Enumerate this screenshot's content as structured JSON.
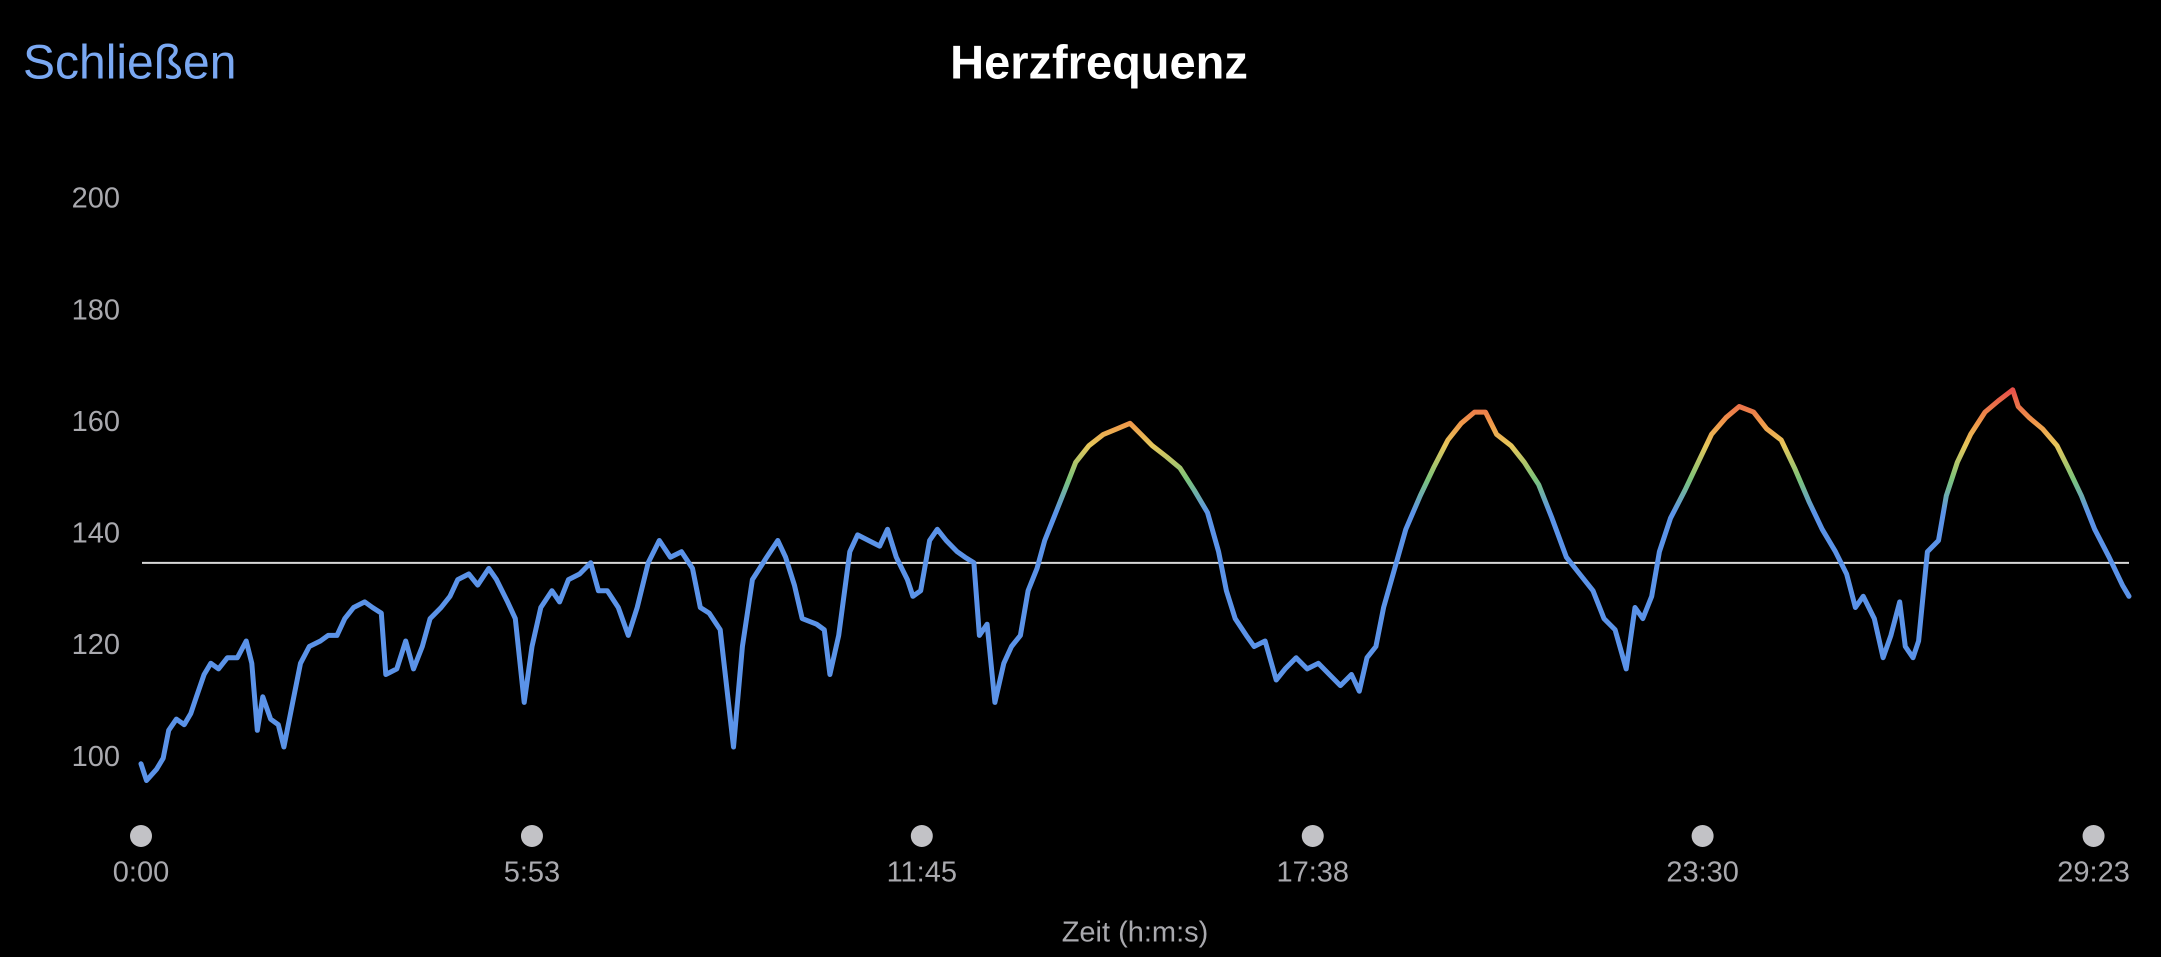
{
  "header": {
    "close": "Schließen"
  },
  "chart_data": {
    "type": "line",
    "title": "Herzfrequenz",
    "x_label": "Zeit (h:m:s)",
    "xlim": [
      0,
      1795
    ],
    "ylim": [
      90,
      200
    ],
    "yticks": [
      100,
      120,
      140,
      160,
      180,
      200
    ],
    "xticks": [
      {
        "value": 0,
        "label": "0:00"
      },
      {
        "value": 353,
        "label": "5:53"
      },
      {
        "value": 705,
        "label": "11:45"
      },
      {
        "value": 1058,
        "label": "17:38"
      },
      {
        "value": 1410,
        "label": "23:30"
      },
      {
        "value": 1763,
        "label": "29:23"
      }
    ],
    "reference_line": 135,
    "color_scale": [
      {
        "value": 144,
        "color": "#5b93e8"
      },
      {
        "value": 150,
        "color": "#7cc47a"
      },
      {
        "value": 156,
        "color": "#e6c65a"
      },
      {
        "value": 160,
        "color": "#f0994a"
      },
      {
        "value": 166,
        "color": "#e6504a"
      }
    ],
    "x": [
      0,
      5,
      14,
      20,
      25,
      32,
      39,
      45,
      50,
      57,
      63,
      70,
      78,
      87,
      95,
      100,
      105,
      110,
      117,
      124,
      129,
      137,
      144,
      152,
      162,
      169,
      177,
      184,
      192,
      202,
      209,
      217,
      221,
      231,
      239,
      246,
      254,
      261,
      271,
      279,
      286,
      296,
      304,
      314,
      321,
      331,
      338,
      346,
      353,
      361,
      371,
      378,
      386,
      396,
      406,
      413,
      421,
      431,
      440,
      448,
      458,
      468,
      478,
      488,
      498,
      505,
      513,
      523,
      535,
      543,
      552,
      565,
      575,
      582,
      590,
      597,
      610,
      617,
      622,
      630,
      640,
      647,
      657,
      667,
      674,
      682,
      692,
      697,
      704,
      712,
      719,
      727,
      737,
      744,
      752,
      757,
      764,
      771,
      779,
      786,
      794,
      801,
      809,
      816,
      824,
      834,
      844,
      856,
      869,
      881,
      893,
      903,
      913,
      926,
      938,
      951,
      963,
      973,
      980,
      988,
      998,
      1005,
      1015,
      1025,
      1033,
      1043,
      1053,
      1063,
      1073,
      1083,
      1093,
      1100,
      1107,
      1115,
      1122,
      1132,
      1142,
      1155,
      1167,
      1180,
      1192,
      1204,
      1214,
      1224,
      1237,
      1249,
      1262,
      1274,
      1287,
      1299,
      1311,
      1321,
      1331,
      1341,
      1349,
      1356,
      1364,
      1371,
      1381,
      1394,
      1406,
      1418,
      1431,
      1443,
      1456,
      1468,
      1481,
      1493,
      1506,
      1518,
      1530,
      1540,
      1548,
      1555,
      1565,
      1573,
      1580,
      1588,
      1593,
      1600,
      1605,
      1613,
      1623,
      1630,
      1640,
      1652,
      1665,
      1677,
      1690,
      1695,
      1705,
      1717,
      1730,
      1740,
      1752,
      1764,
      1777,
      1789,
      1795
    ],
    "values": [
      99,
      96,
      98,
      100,
      105,
      107,
      106,
      108,
      111,
      115,
      117,
      116,
      118,
      118,
      121,
      117,
      105,
      111,
      107,
      106,
      102,
      110,
      117,
      120,
      121,
      122,
      122,
      125,
      127,
      128,
      127,
      126,
      115,
      116,
      121,
      116,
      120,
      125,
      127,
      129,
      132,
      133,
      131,
      134,
      132,
      128,
      125,
      110,
      120,
      127,
      130,
      128,
      132,
      133,
      135,
      130,
      130,
      127,
      122,
      127,
      135,
      139,
      136,
      137,
      134,
      127,
      126,
      123,
      102,
      120,
      132,
      136,
      139,
      136,
      131,
      125,
      124,
      123,
      115,
      122,
      137,
      140,
      139,
      138,
      141,
      136,
      132,
      129,
      130,
      139,
      141,
      139,
      137,
      136,
      135,
      122,
      124,
      110,
      117,
      120,
      122,
      130,
      134,
      139,
      143,
      148,
      153,
      156,
      158,
      159,
      160,
      158,
      156,
      154,
      152,
      148,
      144,
      137,
      130,
      125,
      122,
      120,
      121,
      114,
      116,
      118,
      116,
      117,
      115,
      113,
      115,
      112,
      118,
      120,
      127,
      134,
      141,
      147,
      152,
      157,
      160,
      162,
      162,
      158,
      156,
      153,
      149,
      143,
      136,
      133,
      130,
      125,
      123,
      116,
      127,
      125,
      129,
      137,
      143,
      148,
      153,
      158,
      161,
      163,
      162,
      159,
      157,
      152,
      146,
      141,
      137,
      133,
      127,
      129,
      125,
      118,
      122,
      128,
      120,
      118,
      121,
      137,
      139,
      147,
      153,
      158,
      162,
      164,
      166,
      163,
      161,
      159,
      156,
      152,
      147,
      141,
      136,
      131,
      129
    ]
  }
}
